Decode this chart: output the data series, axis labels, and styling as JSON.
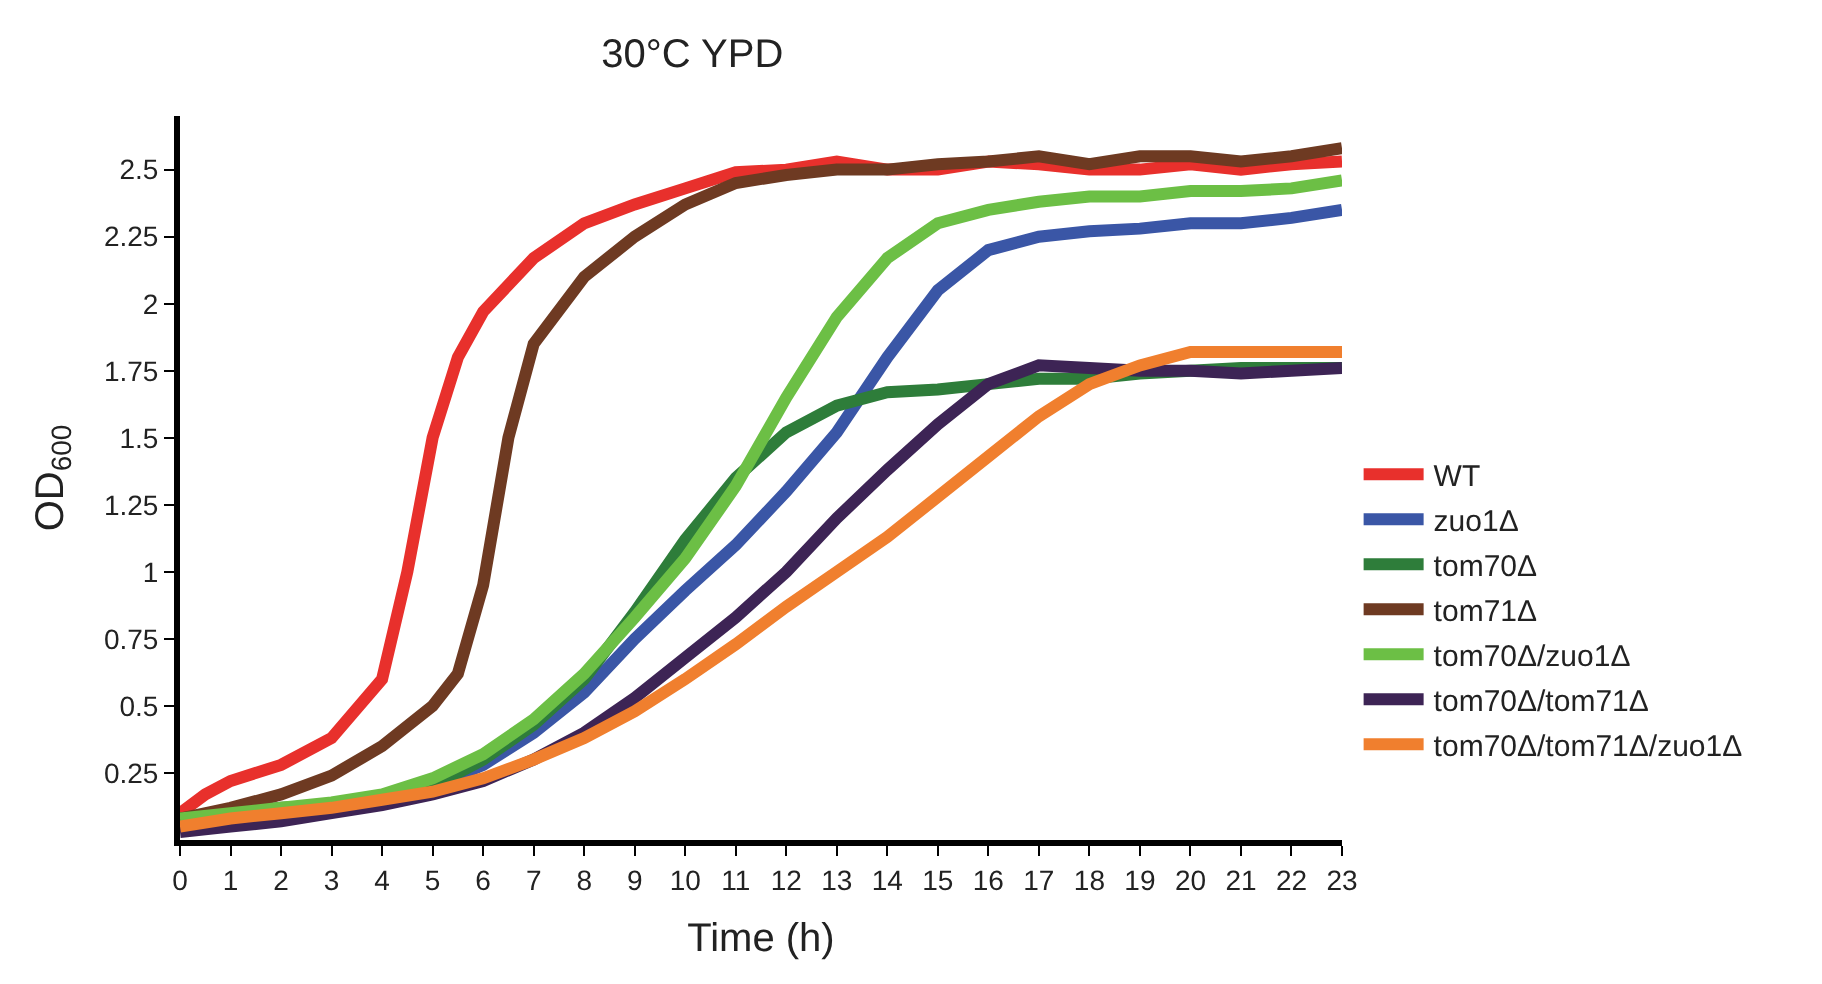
{
  "chart_data": {
    "type": "line",
    "title": "30°C YPD",
    "xlabel": "Time (h)",
    "ylabel": "OD$_{600}$",
    "x": [
      0,
      1,
      2,
      3,
      4,
      5,
      6,
      7,
      8,
      9,
      10,
      11,
      12,
      13,
      14,
      15,
      16,
      17,
      18,
      19,
      20,
      21,
      22,
      23
    ],
    "xlim": [
      0,
      23
    ],
    "xticks": [
      0,
      1,
      2,
      3,
      4,
      5,
      6,
      7,
      8,
      9,
      10,
      11,
      12,
      13,
      14,
      15,
      16,
      17,
      18,
      19,
      20,
      21,
      22,
      23
    ],
    "ylim": [
      0,
      2.7
    ],
    "yticks": [
      0.25,
      0.5,
      0.75,
      1,
      1.25,
      1.5,
      1.75,
      2,
      2.25,
      2.5
    ],
    "legend": "right",
    "marker": "none",
    "line_style": "solid",
    "series": [
      {
        "name": "WT",
        "color": "#e8302c",
        "x": [
          0,
          0.5,
          1,
          2,
          3,
          4,
          4.5,
          5,
          5.5,
          6,
          7,
          8,
          9,
          10,
          11,
          12,
          13,
          14,
          15,
          16,
          17,
          18,
          19,
          20,
          21,
          22,
          23
        ],
        "values": [
          0.1,
          0.17,
          0.22,
          0.28,
          0.38,
          0.6,
          1.0,
          1.5,
          1.8,
          1.97,
          2.17,
          2.3,
          2.37,
          2.43,
          2.49,
          2.5,
          2.53,
          2.5,
          2.5,
          2.53,
          2.52,
          2.5,
          2.5,
          2.52,
          2.5,
          2.52,
          2.53
        ]
      },
      {
        "name": "zuo1Δ",
        "color": "#3a56a6",
        "values": [
          null,
          null,
          0.1,
          0.12,
          0.15,
          0.2,
          0.28,
          0.4,
          0.55,
          0.75,
          0.93,
          1.1,
          1.3,
          1.52,
          1.8,
          2.05,
          2.2,
          2.25,
          2.27,
          2.28,
          2.3,
          2.3,
          2.32,
          2.35
        ]
      },
      {
        "name": "tom70Δ",
        "color": "#2e7d3a",
        "values": [
          0.08,
          0.1,
          0.12,
          0.13,
          0.15,
          0.2,
          0.3,
          0.43,
          0.6,
          0.85,
          1.12,
          1.35,
          1.52,
          1.62,
          1.67,
          1.68,
          1.7,
          1.72,
          1.72,
          1.74,
          1.75,
          1.76,
          1.76,
          1.76
        ]
      },
      {
        "name": "tom71Δ",
        "color": "#6e3a22",
        "x": [
          0,
          1,
          2,
          3,
          4,
          5,
          5.5,
          6,
          6.5,
          7,
          8,
          9,
          10,
          11,
          12,
          13,
          14,
          15,
          16,
          17,
          18,
          19,
          20,
          21,
          22,
          23
        ],
        "values": [
          0.08,
          0.12,
          0.17,
          0.24,
          0.35,
          0.5,
          0.62,
          0.95,
          1.5,
          1.85,
          2.1,
          2.25,
          2.37,
          2.45,
          2.48,
          2.5,
          2.5,
          2.52,
          2.53,
          2.55,
          2.52,
          2.55,
          2.55,
          2.53,
          2.55,
          2.58
        ]
      },
      {
        "name": "tom70Δ/zuo1Δ",
        "color": "#6cbf45",
        "values": [
          0.08,
          0.1,
          0.12,
          0.14,
          0.17,
          0.23,
          0.32,
          0.45,
          0.62,
          0.83,
          1.05,
          1.32,
          1.65,
          1.95,
          2.17,
          2.3,
          2.35,
          2.38,
          2.4,
          2.4,
          2.42,
          2.42,
          2.43,
          2.46
        ]
      },
      {
        "name": "tom70Δ/tom71Δ",
        "color": "#3d2455",
        "values": [
          0.03,
          0.05,
          0.07,
          0.1,
          0.13,
          0.17,
          0.22,
          0.3,
          0.4,
          0.53,
          0.68,
          0.83,
          1.0,
          1.2,
          1.38,
          1.55,
          1.7,
          1.77,
          1.76,
          1.75,
          1.75,
          1.74,
          1.75,
          1.76
        ]
      },
      {
        "name": "tom70Δ/tom71Δ/zuo1Δ",
        "color": "#f07f2e",
        "values": [
          0.05,
          0.08,
          0.1,
          0.12,
          0.15,
          0.18,
          0.23,
          0.3,
          0.38,
          0.48,
          0.6,
          0.73,
          0.87,
          1.0,
          1.13,
          1.28,
          1.43,
          1.58,
          1.7,
          1.77,
          1.82,
          1.82,
          1.82,
          1.82
        ]
      }
    ]
  }
}
